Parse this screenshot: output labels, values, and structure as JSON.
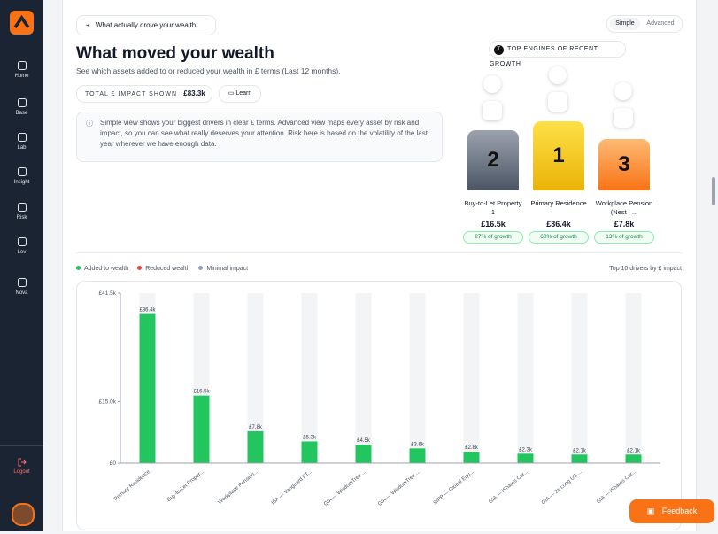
{
  "sidebar": {
    "items": [
      "Home",
      "Base",
      "Lab",
      "Insight",
      "Risk",
      "Lev",
      "Nova"
    ],
    "logout": "Logout"
  },
  "header": {
    "section_button": "What actually drove your wealth",
    "toggle": [
      "Simple",
      "Advanced"
    ],
    "title": "What moved your wealth",
    "subtitle": "See which assets added to or reduced your wealth in £ terms (Last 12 months).",
    "total_label": "TOTAL £ IMPACT SHOWN",
    "total_value": "£83.3k",
    "learn": "Learn",
    "info": "Simple view shows your biggest drivers in clear £ terms. Advanced view maps every asset by risk and impact, so you can see what really deserves your attention. Risk here is based on the volatility of the last year wherever we have enough data."
  },
  "podium": {
    "title": "TOP ENGINES OF RECENT GROWTH",
    "entries": [
      {
        "rank": "2",
        "name": "Buy-to-Let Property 1",
        "value": "£16.5k",
        "share": "27% of growth"
      },
      {
        "rank": "1",
        "name": "Primary Residence",
        "value": "£36.4k",
        "share": "60% of growth"
      },
      {
        "rank": "3",
        "name": "Workplace Pension (Nest –...",
        "value": "£7.8k",
        "share": "13% of growth"
      }
    ]
  },
  "chart_data": {
    "type": "bar",
    "legend": [
      {
        "name": "Added to wealth",
        "color": "#22c55e"
      },
      {
        "name": "Reduced wealth",
        "color": "#ef4444"
      },
      {
        "name": "Minimal impact",
        "color": "#94a3b8"
      }
    ],
    "note": "Top 10 drivers by £ impact",
    "categories": [
      "Primary Residence",
      "Buy-to-Let Proper...",
      "Workplace Pension...",
      "ISA — Vanguard FT...",
      "GIA — WisdomTree ...",
      "GIA — WisdomTree ...",
      "SIPP — Global Equ...",
      "GIA — iShares Cor...",
      "GIA — 2x Long US ...",
      "GIA — iShares Cor..."
    ],
    "values": [
      36400,
      16500,
      7800,
      5300,
      4500,
      3600,
      2800,
      2300,
      2100,
      2100
    ],
    "value_labels": [
      "£36.4k",
      "£16.5k",
      "£7.8k",
      "£5.3k",
      "£4.5k",
      "£3.6k",
      "£2.8k",
      "£2.3k",
      "£2.1k",
      "£2.1k"
    ],
    "color": "#22c55e",
    "ylim": [
      0,
      41500
    ],
    "yticks": [
      {
        "value": 0,
        "label": "£0"
      },
      {
        "value": 15000,
        "label": "£15.0k"
      },
      {
        "value": 41500,
        "label": "£41.5k"
      }
    ]
  },
  "feedback": "Feedback"
}
